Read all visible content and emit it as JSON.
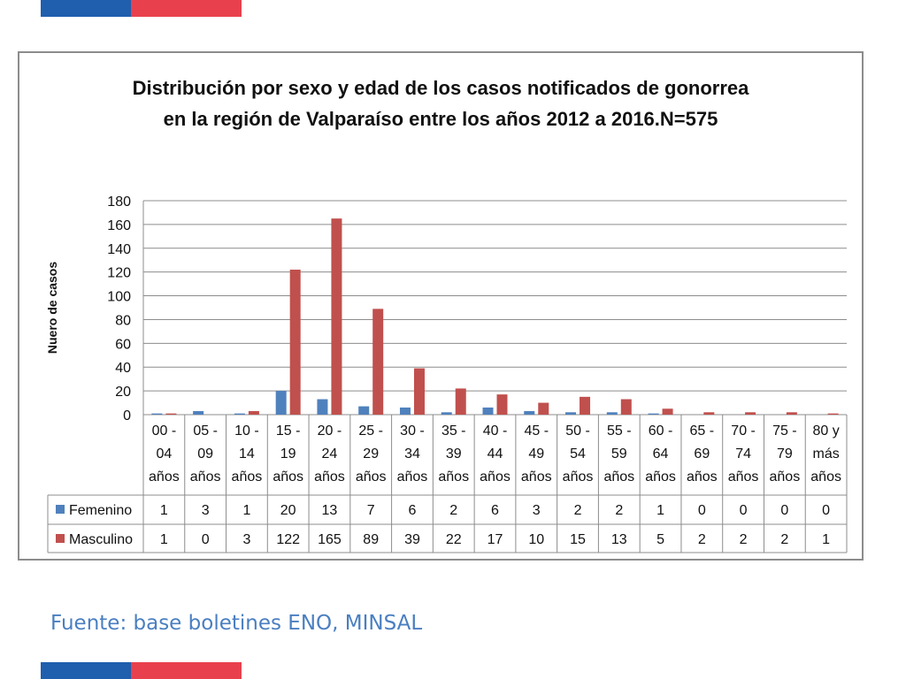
{
  "colors": {
    "flag_blue": "#1f5fae",
    "flag_red": "#e8414d",
    "femenino": "#4f81bd",
    "masculino": "#c0504d",
    "source_text": "#4a7fc1"
  },
  "source": "Fuente: base boletines ENO, MINSAL",
  "chart_data": {
    "type": "bar",
    "title_lines": [
      "Distribución por sexo y edad de los casos notificados de gonorrea",
      "en la región de Valparaíso entre los años 2012 a 2016.N=575"
    ],
    "ylabel": "Nuero de casos",
    "xlabel": "",
    "ylim": [
      0,
      180
    ],
    "yticks": [
      0,
      20,
      40,
      60,
      80,
      100,
      120,
      140,
      160,
      180
    ],
    "grid": true,
    "legend": "in data table",
    "categories": [
      [
        "00 -",
        "04",
        "años"
      ],
      [
        "05 -",
        "09",
        "años"
      ],
      [
        "10 -",
        "14",
        "años"
      ],
      [
        "15 -",
        "19",
        "años"
      ],
      [
        "20 -",
        "24",
        "años"
      ],
      [
        "25 -",
        "29",
        "años"
      ],
      [
        "30 -",
        "34",
        "años"
      ],
      [
        "35 -",
        "39",
        "años"
      ],
      [
        "40 -",
        "44",
        "años"
      ],
      [
        "45 -",
        "49",
        "años"
      ],
      [
        "50 -",
        "54",
        "años"
      ],
      [
        "55 -",
        "59",
        "años"
      ],
      [
        "60 -",
        "64",
        "años"
      ],
      [
        "65 -",
        "69",
        "años"
      ],
      [
        "70 -",
        "74",
        "años"
      ],
      [
        "75 -",
        "79",
        "años"
      ],
      [
        "80 y",
        "más",
        "años"
      ]
    ],
    "series": [
      {
        "name": "Femenino",
        "color": "#4f81bd",
        "values": [
          1,
          3,
          1,
          20,
          13,
          7,
          6,
          2,
          6,
          3,
          2,
          2,
          1,
          0,
          0,
          0,
          0
        ]
      },
      {
        "name": "Masculino",
        "color": "#c0504d",
        "values": [
          1,
          0,
          3,
          122,
          165,
          89,
          39,
          22,
          17,
          10,
          15,
          13,
          5,
          2,
          2,
          2,
          1
        ]
      }
    ]
  }
}
